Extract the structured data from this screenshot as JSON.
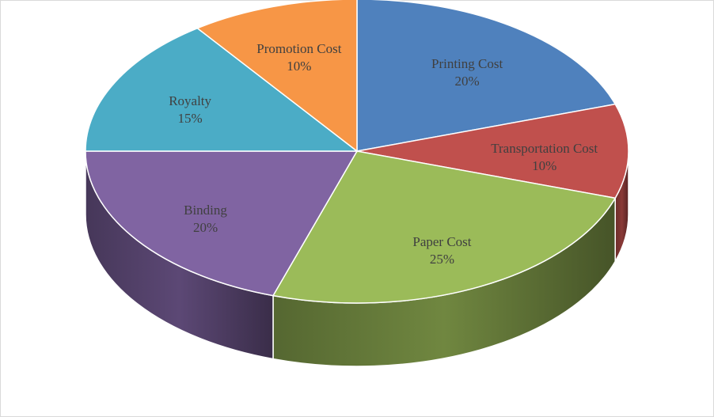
{
  "chart_data": {
    "type": "pie",
    "style": "3d",
    "title": "",
    "legend": "none",
    "data_labels": "category-and-percent",
    "slices": [
      {
        "label": "Printing Cost",
        "value": 20,
        "percent_label": "20%",
        "color": "#4F81BD"
      },
      {
        "label": "Transportation Cost",
        "value": 10,
        "percent_label": "10%",
        "color": "#C0504D"
      },
      {
        "label": "Paper Cost",
        "value": 25,
        "percent_label": "25%",
        "color": "#9BBB59"
      },
      {
        "label": "Binding",
        "value": 20,
        "percent_label": "20%",
        "color": "#8064A2"
      },
      {
        "label": "Royalty",
        "value": 15,
        "percent_label": "15%",
        "color": "#4BACC6"
      },
      {
        "label": "Promotion Cost",
        "value": 10,
        "percent_label": "10%",
        "color": "#F79646"
      }
    ]
  }
}
